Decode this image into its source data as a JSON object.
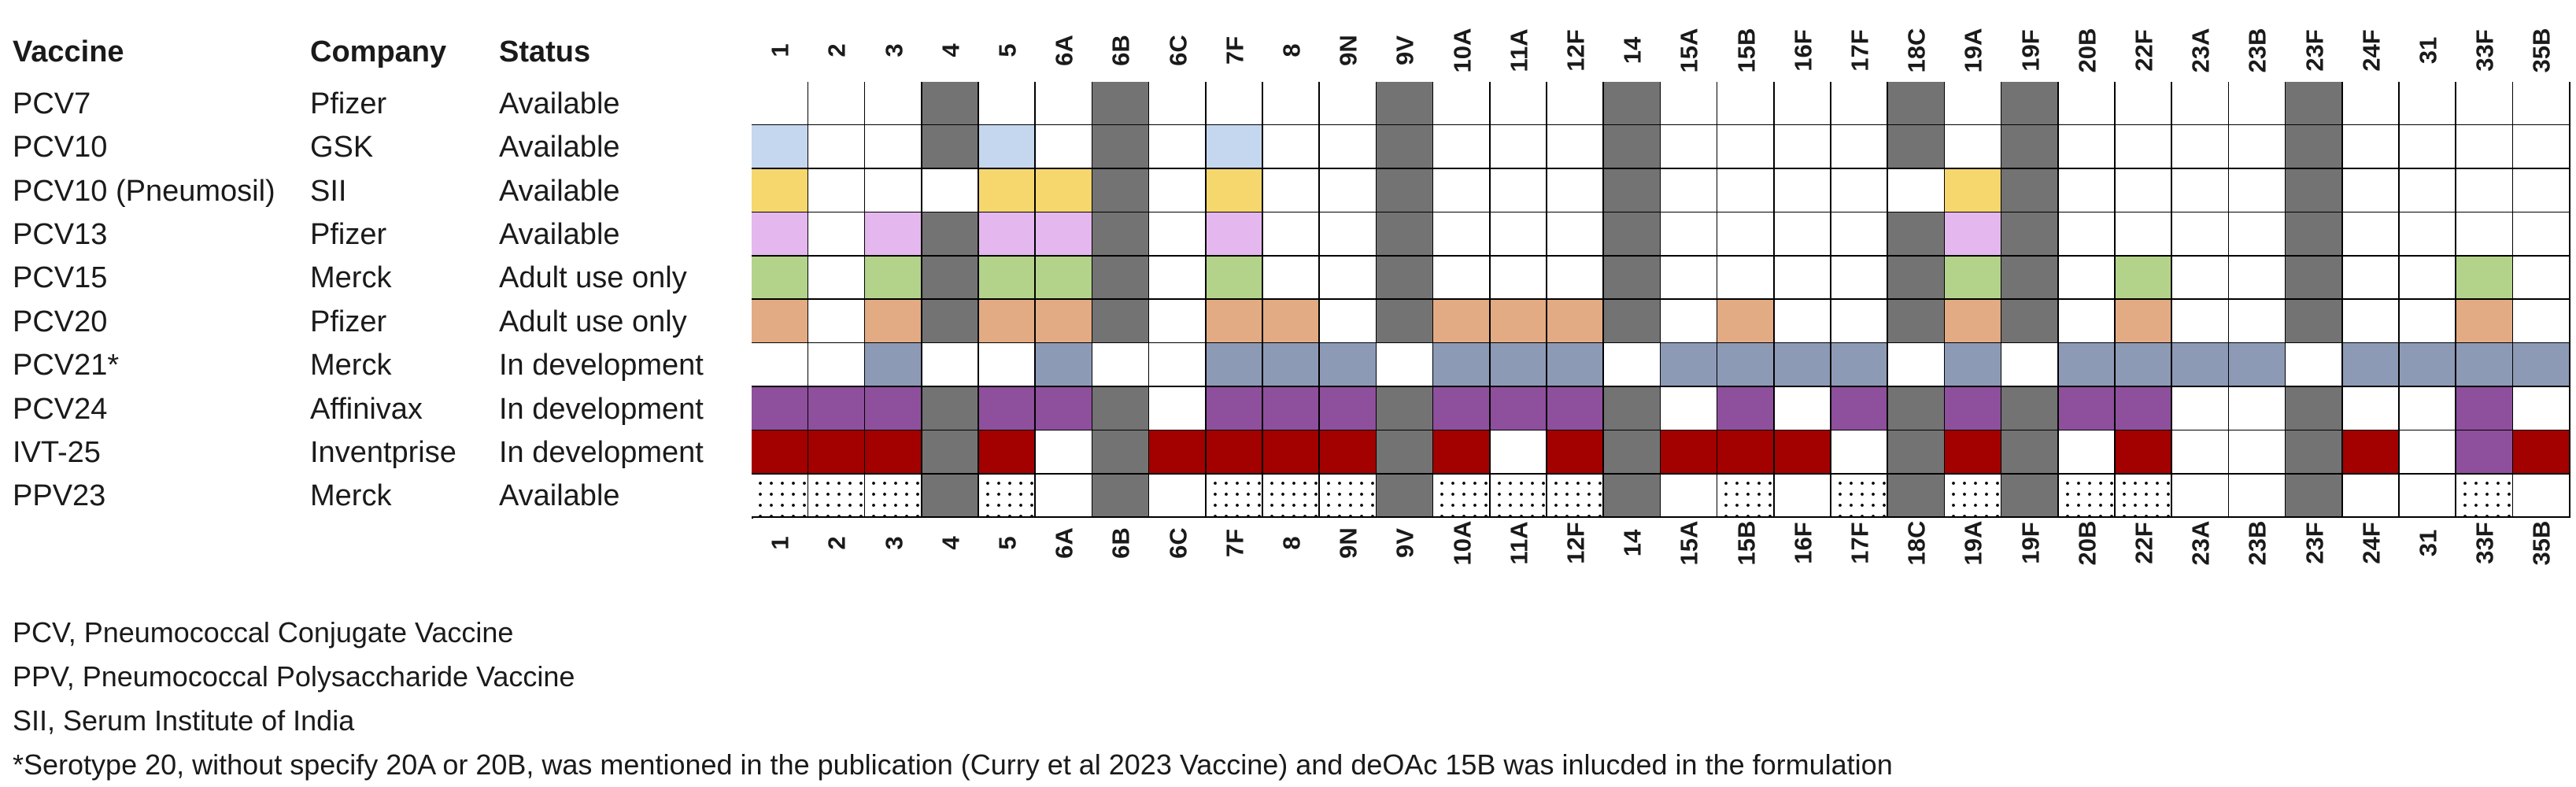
{
  "headers": {
    "vaccine": "Vaccine",
    "company": "Company",
    "status": "Status"
  },
  "serotypes": [
    "1",
    "2",
    "3",
    "4",
    "5",
    "6A",
    "6B",
    "6C",
    "7F",
    "8",
    "9N",
    "9V",
    "10A",
    "11A",
    "12F",
    "14",
    "15A",
    "15B",
    "16F",
    "17F",
    "18C",
    "19A",
    "19F",
    "20B",
    "22F",
    "23A",
    "23B",
    "23F",
    "24F",
    "31",
    "33F",
    "35B"
  ],
  "colors": {
    "white": "#ffffff",
    "grey": "#737373",
    "blue": "#c5d7ee",
    "yellow": "#f5d76e",
    "pink": "#e5b7ef",
    "green": "#b3d38b",
    "orange": "#e3ab83",
    "slate": "#8d9ab6",
    "purple": "#8e4f9c",
    "red": "#a30000",
    "dotted": "dotted"
  },
  "rows": [
    {
      "vaccine": "PCV7",
      "company": "Pfizer",
      "status": "Available",
      "cells": [
        "w",
        "w",
        "w",
        "g",
        "w",
        "w",
        "g",
        "w",
        "w",
        "w",
        "w",
        "g",
        "w",
        "w",
        "w",
        "g",
        "w",
        "w",
        "w",
        "w",
        "g",
        "w",
        "g",
        "w",
        "w",
        "w",
        "w",
        "g",
        "w",
        "w",
        "w",
        "w"
      ]
    },
    {
      "vaccine": "PCV10",
      "company": "GSK",
      "status": "Available",
      "cells": [
        "b",
        "w",
        "w",
        "g",
        "b",
        "w",
        "g",
        "w",
        "b",
        "w",
        "w",
        "g",
        "w",
        "w",
        "w",
        "g",
        "w",
        "w",
        "w",
        "w",
        "g",
        "w",
        "g",
        "w",
        "w",
        "w",
        "w",
        "g",
        "w",
        "w",
        "w",
        "w"
      ]
    },
    {
      "vaccine": "PCV10 (Pneumosil)",
      "company": "SII",
      "status": "Available",
      "cells": [
        "y",
        "w",
        "w",
        "w",
        "y",
        "y",
        "g",
        "w",
        "y",
        "w",
        "w",
        "g",
        "w",
        "w",
        "w",
        "g",
        "w",
        "w",
        "w",
        "w",
        "w",
        "y",
        "g",
        "w",
        "w",
        "w",
        "w",
        "g",
        "w",
        "w",
        "w",
        "w"
      ]
    },
    {
      "vaccine": "PCV13",
      "company": "Pfizer",
      "status": "Available",
      "cells": [
        "p",
        "w",
        "p",
        "g",
        "p",
        "p",
        "g",
        "w",
        "p",
        "w",
        "w",
        "g",
        "w",
        "w",
        "w",
        "g",
        "w",
        "w",
        "w",
        "w",
        "g",
        "p",
        "g",
        "w",
        "w",
        "w",
        "w",
        "g",
        "w",
        "w",
        "w",
        "w"
      ]
    },
    {
      "vaccine": "PCV15",
      "company": "Merck",
      "status": "Adult use only",
      "cells": [
        "n",
        "w",
        "n",
        "g",
        "n",
        "n",
        "g",
        "w",
        "n",
        "w",
        "w",
        "g",
        "w",
        "w",
        "w",
        "g",
        "w",
        "w",
        "w",
        "w",
        "g",
        "n",
        "g",
        "w",
        "n",
        "w",
        "w",
        "g",
        "w",
        "w",
        "n",
        "w"
      ]
    },
    {
      "vaccine": "PCV20",
      "company": "Pfizer",
      "status": "Adult use only",
      "cells": [
        "o",
        "w",
        "o",
        "g",
        "o",
        "o",
        "g",
        "w",
        "o",
        "o",
        "w",
        "g",
        "o",
        "o",
        "o",
        "g",
        "w",
        "o",
        "w",
        "w",
        "g",
        "o",
        "g",
        "w",
        "o",
        "w",
        "w",
        "g",
        "w",
        "w",
        "o",
        "w"
      ]
    },
    {
      "vaccine": "PCV21*",
      "company": "Merck",
      "status": "In development",
      "cells": [
        "w",
        "w",
        "s",
        "w",
        "w",
        "s",
        "w",
        "w",
        "s",
        "s",
        "s",
        "w",
        "s",
        "s",
        "s",
        "w",
        "s",
        "s",
        "s",
        "s",
        "w",
        "s",
        "w",
        "s",
        "s",
        "s",
        "s",
        "w",
        "s",
        "s",
        "s",
        "s"
      ]
    },
    {
      "vaccine": "PCV24",
      "company": "Affinivax",
      "status": "In development",
      "cells": [
        "u",
        "u",
        "u",
        "g",
        "u",
        "u",
        "g",
        "w",
        "u",
        "u",
        "u",
        "g",
        "u",
        "u",
        "u",
        "g",
        "w",
        "u",
        "w",
        "u",
        "g",
        "u",
        "g",
        "u",
        "u",
        "w",
        "w",
        "g",
        "w",
        "w",
        "u",
        "w"
      ]
    },
    {
      "vaccine": "IVT-25",
      "company": "Inventprise",
      "status": "In development",
      "cells": [
        "r",
        "r",
        "r",
        "g",
        "r",
        "w",
        "g",
        "r",
        "r",
        "r",
        "r",
        "g",
        "r",
        "w",
        "r",
        "g",
        "r",
        "r",
        "r",
        "w",
        "g",
        "r",
        "g",
        "w",
        "r",
        "w",
        "w",
        "g",
        "r",
        "w",
        "u",
        "r"
      ]
    },
    {
      "vaccine": "PPV23",
      "company": "Merck",
      "status": "Available",
      "cells": [
        "d",
        "d",
        "d",
        "g",
        "d",
        "w",
        "g",
        "w",
        "d",
        "d",
        "d",
        "g",
        "d",
        "d",
        "d",
        "g",
        "w",
        "d",
        "w",
        "d",
        "g",
        "d",
        "g",
        "d",
        "d",
        "w",
        "w",
        "g",
        "w",
        "w",
        "d",
        "w"
      ]
    }
  ],
  "footnotes": [
    "PCV, Pneumococcal Conjugate Vaccine",
    "PPV, Pneumococcal Polysaccharide Vaccine",
    "SII, Serum Institute of India",
    "*Serotype 20, without specify 20A or 20B, was mentioned in the publication (Curry et al 2023 Vaccine) and deOAc 15B was inlucded in the formulation"
  ]
}
